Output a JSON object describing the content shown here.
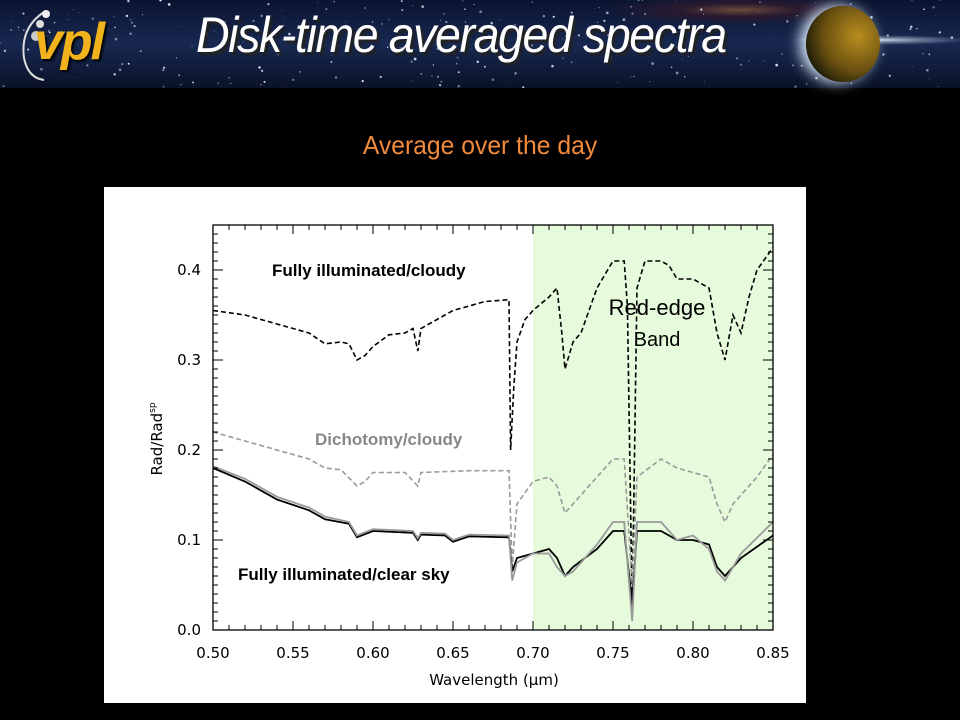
{
  "header": {
    "logo_text": "vpl",
    "title": "Disk-time averaged spectra"
  },
  "subtitle": "Average over the day",
  "colors": {
    "subtitle": "#f08a3c",
    "band_fill": "#e6fadc",
    "logo": "#f2b21c"
  },
  "chart_data": {
    "type": "line",
    "xlabel": "Wavelength (μm)",
    "ylabel": "Rad/Rad",
    "ylabel_sup": "sp",
    "xlim": [
      0.5,
      0.85
    ],
    "ylim": [
      0.0,
      0.45
    ],
    "xticks": [
      "0.50",
      "0.55",
      "0.60",
      "0.65",
      "0.70",
      "0.75",
      "0.80",
      "0.85"
    ],
    "yticks": [
      "0.0",
      "0.1",
      "0.2",
      "0.3",
      "0.4"
    ],
    "grid": false,
    "shaded_band": {
      "x": [
        0.7,
        0.85
      ],
      "label_line1": "Red-edge",
      "label_line2": "Band"
    },
    "annotations": [
      "Fully illuminated/cloudy",
      "Dichotomy/cloudy",
      "Fully illuminated/clear sky"
    ],
    "series": [
      {
        "name": "Fully illuminated/cloudy",
        "style": "dashed",
        "color": "#000000",
        "x": [
          0.5,
          0.52,
          0.54,
          0.56,
          0.57,
          0.58,
          0.585,
          0.59,
          0.595,
          0.6,
          0.61,
          0.62,
          0.625,
          0.628,
          0.63,
          0.64,
          0.65,
          0.66,
          0.67,
          0.685,
          0.686,
          0.688,
          0.69,
          0.695,
          0.7,
          0.71,
          0.715,
          0.718,
          0.72,
          0.725,
          0.73,
          0.74,
          0.75,
          0.757,
          0.759,
          0.762,
          0.765,
          0.77,
          0.78,
          0.785,
          0.79,
          0.8,
          0.81,
          0.815,
          0.82,
          0.825,
          0.83,
          0.835,
          0.84,
          0.85
        ],
        "y": [
          0.355,
          0.35,
          0.34,
          0.33,
          0.318,
          0.32,
          0.318,
          0.3,
          0.305,
          0.315,
          0.328,
          0.33,
          0.335,
          0.31,
          0.335,
          0.345,
          0.355,
          0.36,
          0.365,
          0.367,
          0.2,
          0.27,
          0.32,
          0.345,
          0.355,
          0.37,
          0.38,
          0.33,
          0.29,
          0.32,
          0.33,
          0.38,
          0.41,
          0.41,
          0.36,
          0.022,
          0.38,
          0.41,
          0.41,
          0.405,
          0.39,
          0.39,
          0.38,
          0.33,
          0.3,
          0.35,
          0.33,
          0.37,
          0.4,
          0.425
        ]
      },
      {
        "name": "Dichotomy/cloudy",
        "style": "dashed",
        "color": "#999999",
        "x": [
          0.5,
          0.52,
          0.54,
          0.56,
          0.57,
          0.58,
          0.59,
          0.595,
          0.6,
          0.62,
          0.628,
          0.63,
          0.66,
          0.685,
          0.687,
          0.69,
          0.7,
          0.71,
          0.715,
          0.72,
          0.725,
          0.74,
          0.75,
          0.757,
          0.762,
          0.765,
          0.78,
          0.79,
          0.8,
          0.81,
          0.815,
          0.82,
          0.825,
          0.84,
          0.85
        ],
        "y": [
          0.22,
          0.21,
          0.2,
          0.19,
          0.18,
          0.178,
          0.16,
          0.165,
          0.175,
          0.175,
          0.16,
          0.175,
          0.177,
          0.177,
          0.07,
          0.14,
          0.165,
          0.17,
          0.16,
          0.13,
          0.14,
          0.17,
          0.19,
          0.19,
          0.05,
          0.17,
          0.19,
          0.18,
          0.175,
          0.17,
          0.14,
          0.12,
          0.14,
          0.17,
          0.195
        ]
      },
      {
        "name": "Fully illuminated/clear sky",
        "style": "solid",
        "color": "#000000",
        "x": [
          0.5,
          0.52,
          0.54,
          0.56,
          0.57,
          0.585,
          0.59,
          0.6,
          0.625,
          0.628,
          0.63,
          0.645,
          0.65,
          0.66,
          0.685,
          0.687,
          0.69,
          0.7,
          0.71,
          0.715,
          0.72,
          0.725,
          0.74,
          0.75,
          0.757,
          0.762,
          0.765,
          0.78,
          0.79,
          0.8,
          0.81,
          0.815,
          0.82,
          0.83,
          0.85
        ],
        "y": [
          0.18,
          0.165,
          0.145,
          0.133,
          0.123,
          0.118,
          0.103,
          0.11,
          0.108,
          0.1,
          0.106,
          0.105,
          0.098,
          0.104,
          0.103,
          0.065,
          0.08,
          0.085,
          0.09,
          0.08,
          0.06,
          0.07,
          0.09,
          0.11,
          0.11,
          0.03,
          0.11,
          0.11,
          0.1,
          0.1,
          0.095,
          0.07,
          0.06,
          0.08,
          0.105
        ]
      },
      {
        "style": "solid",
        "color": "#999999",
        "x": [
          0.5,
          0.52,
          0.54,
          0.56,
          0.57,
          0.585,
          0.59,
          0.6,
          0.625,
          0.628,
          0.63,
          0.645,
          0.65,
          0.66,
          0.685,
          0.687,
          0.69,
          0.7,
          0.71,
          0.715,
          0.72,
          0.725,
          0.74,
          0.75,
          0.757,
          0.762,
          0.765,
          0.78,
          0.79,
          0.8,
          0.81,
          0.815,
          0.82,
          0.83,
          0.85
        ],
        "y": [
          0.182,
          0.168,
          0.148,
          0.136,
          0.126,
          0.12,
          0.105,
          0.112,
          0.11,
          0.102,
          0.108,
          0.107,
          0.1,
          0.106,
          0.105,
          0.055,
          0.075,
          0.085,
          0.085,
          0.07,
          0.06,
          0.065,
          0.095,
          0.12,
          0.12,
          0.01,
          0.12,
          0.12,
          0.1,
          0.105,
          0.09,
          0.065,
          0.055,
          0.085,
          0.12
        ]
      }
    ]
  }
}
